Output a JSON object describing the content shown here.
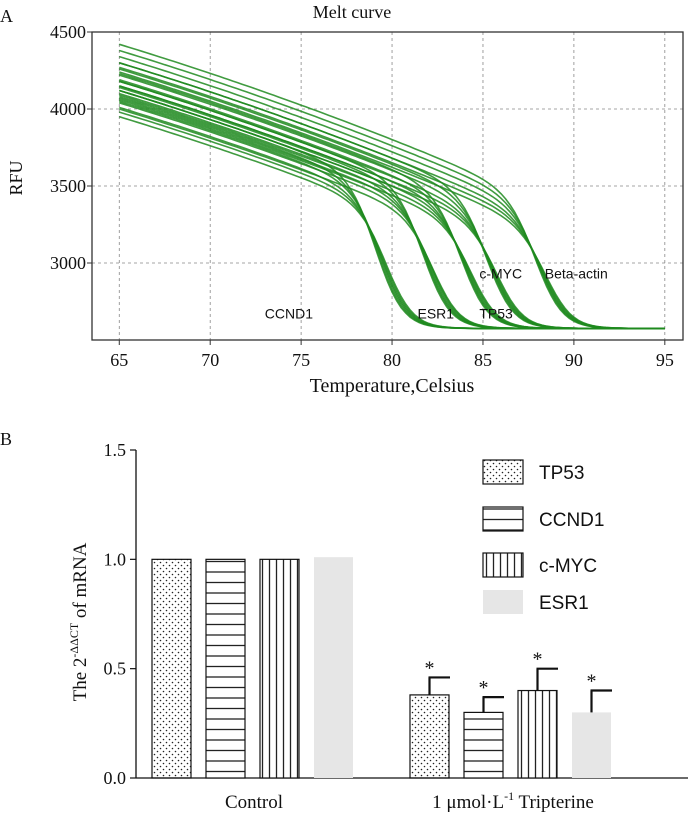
{
  "chart_data": [
    {
      "type": "line",
      "panel_label": "A",
      "title": "Melt curve",
      "xlabel": "Temperature,Celsius",
      "ylabel": "RFU",
      "xlim": [
        63.5,
        96
      ],
      "ylim": [
        2500,
        4500
      ],
      "x_ticks": [
        65,
        70,
        75,
        80,
        85,
        90,
        95
      ],
      "y_ticks": [
        3000,
        3500,
        4000,
        4500
      ],
      "grid": true,
      "line_color": "#1f8a1f",
      "baseline": 2575,
      "x": [
        65,
        66,
        67,
        68,
        69,
        70,
        71,
        72,
        73,
        74,
        75,
        76,
        77,
        78,
        79,
        80,
        81,
        82,
        83,
        84,
        85,
        86,
        87,
        88,
        89,
        90,
        91,
        92,
        93,
        94,
        95
      ],
      "series": [
        {
          "name": "CCND1",
          "melt_temp": 79.5,
          "replicates": 6,
          "start_rfu": [
            4120,
            4080,
            4050,
            4010,
            3980,
            3950
          ]
        },
        {
          "name": "ESR1",
          "melt_temp": 82.1,
          "replicates": 6,
          "start_rfu": [
            4180,
            4140,
            4100,
            4070,
            4040,
            4000
          ]
        },
        {
          "name": "TP53",
          "melt_temp": 84.2,
          "replicates": 6,
          "start_rfu": [
            4230,
            4190,
            4150,
            4120,
            4090,
            4060
          ]
        },
        {
          "name": "c-MYC",
          "melt_temp": 85.6,
          "replicates": 6,
          "start_rfu": [
            4300,
            4260,
            4220,
            4180,
            4150,
            4120
          ]
        },
        {
          "name": "Beta-actin",
          "melt_temp": 88.3,
          "replicates": 6,
          "start_rfu": [
            4420,
            4380,
            4340,
            4300,
            4270,
            4240
          ]
        }
      ]
    },
    {
      "type": "bar",
      "panel_label": "B",
      "ylabel_parts": {
        "prefix": "The 2",
        "superscript": "-ΔΔCT",
        "suffix": " of mRNA"
      },
      "ylim": [
        0,
        1.5
      ],
      "y_ticks": [
        "0.0",
        "0.5",
        "1.0",
        "1.5"
      ],
      "categories": [
        "Control",
        "1 μmol·L-1 Tripterine"
      ],
      "category_labels": [
        {
          "text": "Control"
        },
        {
          "prefix": "1 μmol·L",
          "superscript": "-1",
          "suffix": " Tripterine"
        }
      ],
      "series": [
        {
          "name": "TP53",
          "pattern": "dots",
          "values": [
            1.0,
            0.38
          ],
          "errors": [
            0,
            0.08
          ],
          "significant": [
            false,
            true
          ]
        },
        {
          "name": "CCND1",
          "pattern": "horizontal",
          "values": [
            1.0,
            0.3
          ],
          "errors": [
            0,
            0.07
          ],
          "significant": [
            false,
            true
          ]
        },
        {
          "name": "c-MYC",
          "pattern": "vertical",
          "values": [
            1.0,
            0.4
          ],
          "errors": [
            0,
            0.1
          ],
          "significant": [
            false,
            true
          ]
        },
        {
          "name": "ESR1",
          "pattern": "solid",
          "values": [
            1.01,
            0.3
          ],
          "errors": [
            0,
            0.1
          ],
          "significant": [
            false,
            true
          ]
        }
      ],
      "significance_marker": "*",
      "fill_color": "#e6e6e6"
    }
  ]
}
